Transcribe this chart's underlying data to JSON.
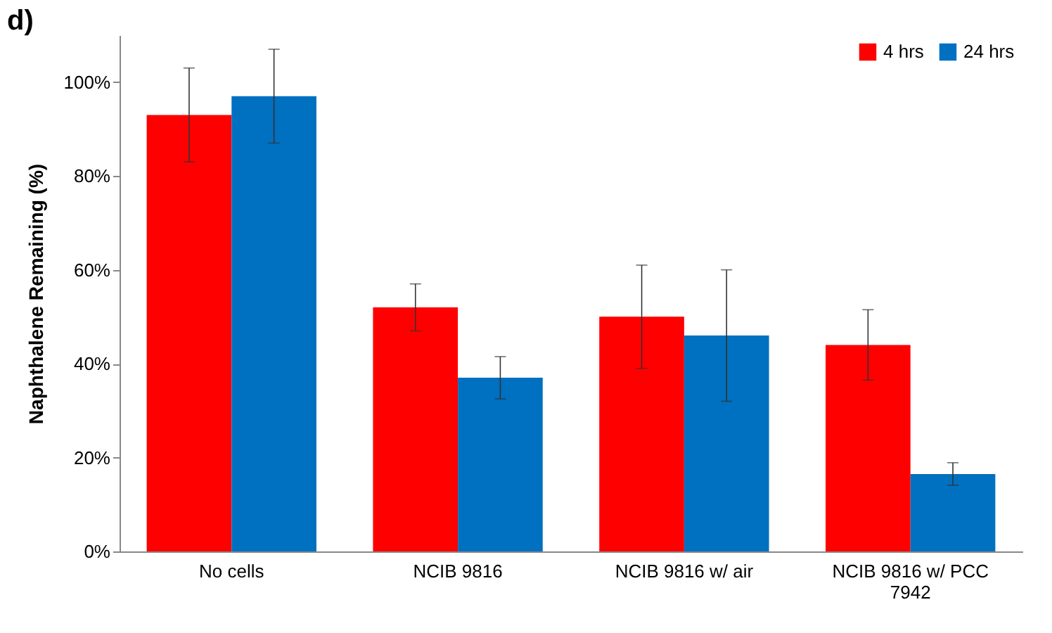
{
  "chart_data": {
    "type": "bar",
    "title": "d)",
    "ylabel": "Naphthalene Remaining (%)",
    "categories": [
      "No cells",
      "NCIB 9816",
      "NCIB 9816 w/ air",
      "NCIB 9816 w/ PCC 7942"
    ],
    "series": [
      {
        "name": "4 hrs",
        "color": "#ff0000",
        "values": [
          93,
          52,
          50,
          44
        ],
        "errors": [
          10,
          5,
          11,
          7.5
        ]
      },
      {
        "name": "24 hrs",
        "color": "#0070c0",
        "values": [
          97,
          37,
          46,
          16.5
        ],
        "errors": [
          10,
          4.5,
          14,
          2.4
        ]
      }
    ],
    "ylim": [
      0,
      110
    ],
    "yticks": [
      {
        "value": 0,
        "label": "0%"
      },
      {
        "value": 20,
        "label": "20%"
      },
      {
        "value": 40,
        "label": "40%"
      },
      {
        "value": 60,
        "label": "60%"
      },
      {
        "value": 80,
        "label": "80%"
      },
      {
        "value": 100,
        "label": "100%"
      }
    ],
    "grid": false,
    "legend": "top right"
  }
}
